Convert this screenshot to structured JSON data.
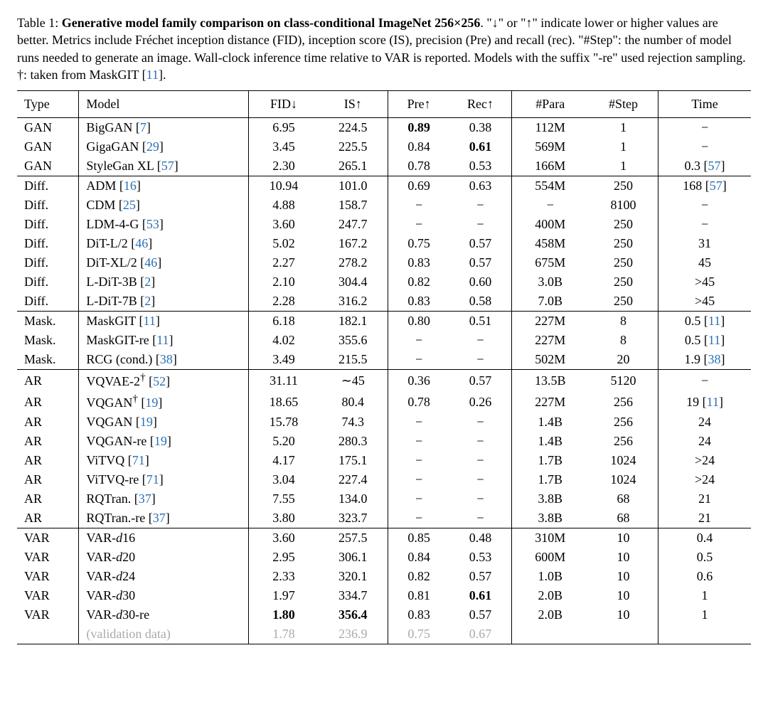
{
  "caption": {
    "label": "Table 1: ",
    "title": "Generative model family comparison on class-conditional ImageNet 256×256",
    "rest_before_cite": ". \"↓\" or \"↑\" indicate lower or higher values are better. Metrics include Fréchet inception distance (FID), inception score (IS), precision (Pre) and recall (rec). \"#Step\": the number of model runs needed to generate an image. Wall-clock inference time relative to VAR is reported. Models with the suffix \"-re\" used rejection sampling. †: taken from MaskGIT [",
    "cite": "11",
    "rest_after_cite": "]."
  },
  "headers": {
    "type": "Type",
    "model": "Model",
    "fid": "FID↓",
    "is": "IS↑",
    "pre": "Pre↑",
    "rec": "Rec↑",
    "para": "#Para",
    "step": "#Step",
    "time": "Time"
  },
  "groups": [
    {
      "rows": [
        {
          "type": "GAN",
          "model": {
            "pre": "BigGAN [",
            "cite": "7",
            "post": "]"
          },
          "fid": "6.95",
          "is": "224.5",
          "pre": {
            "v": "0.89",
            "bold": true
          },
          "rec": "0.38",
          "para": "112M",
          "step": "1",
          "time": {
            "v": "−"
          }
        },
        {
          "type": "GAN",
          "model": {
            "pre": "GigaGAN [",
            "cite": "29",
            "post": "]"
          },
          "fid": "3.45",
          "is": "225.5",
          "pre": "0.84",
          "rec": {
            "v": "0.61",
            "bold": true
          },
          "para": "569M",
          "step": "1",
          "time": {
            "v": "−"
          }
        },
        {
          "type": "GAN",
          "model": {
            "pre": "StyleGan XL [",
            "cite": "57",
            "post": "]"
          },
          "fid": "2.30",
          "is": "265.1",
          "pre": "0.78",
          "rec": "0.53",
          "para": "166M",
          "step": "1",
          "time": {
            "v": "0.3 [",
            "cite": "57",
            "post": "]"
          }
        }
      ]
    },
    {
      "rows": [
        {
          "type": "Diff.",
          "model": {
            "pre": "ADM [",
            "cite": "16",
            "post": "]"
          },
          "fid": "10.94",
          "is": "101.0",
          "pre": "0.69",
          "rec": "0.63",
          "para": "554M",
          "step": "250",
          "time": {
            "v": "168 [",
            "cite": "57",
            "post": "]"
          }
        },
        {
          "type": "Diff.",
          "model": {
            "pre": "CDM [",
            "cite": "25",
            "post": "]"
          },
          "fid": "4.88",
          "is": "158.7",
          "pre": "−",
          "rec": "−",
          "para": "−",
          "step": "8100",
          "time": {
            "v": "−"
          }
        },
        {
          "type": "Diff.",
          "model": {
            "pre": "LDM-4-G [",
            "cite": "53",
            "post": "]"
          },
          "fid": "3.60",
          "is": "247.7",
          "pre": "−",
          "rec": "−",
          "para": "400M",
          "step": "250",
          "time": {
            "v": "−"
          }
        },
        {
          "type": "Diff.",
          "model": {
            "pre": "DiT-L/2 [",
            "cite": "46",
            "post": "]"
          },
          "fid": "5.02",
          "is": "167.2",
          "pre": "0.75",
          "rec": "0.57",
          "para": "458M",
          "step": "250",
          "time": {
            "v": "31"
          }
        },
        {
          "type": "Diff.",
          "model": {
            "pre": "DiT-XL/2 [",
            "cite": "46",
            "post": "]"
          },
          "fid": "2.27",
          "is": "278.2",
          "pre": "0.83",
          "rec": "0.57",
          "para": "675M",
          "step": "250",
          "time": {
            "v": "45"
          }
        },
        {
          "type": "Diff.",
          "model": {
            "pre": "L-DiT-3B [",
            "cite": "2",
            "post": "]"
          },
          "fid": "2.10",
          "is": "304.4",
          "pre": "0.82",
          "rec": "0.60",
          "para": "3.0B",
          "step": "250",
          "time": {
            "v": ">45"
          }
        },
        {
          "type": "Diff.",
          "model": {
            "pre": "L-DiT-7B [",
            "cite": "2",
            "post": "]"
          },
          "fid": "2.28",
          "is": "316.2",
          "pre": "0.83",
          "rec": "0.58",
          "para": "7.0B",
          "step": "250",
          "time": {
            "v": ">45"
          }
        }
      ]
    },
    {
      "rows": [
        {
          "type": "Mask.",
          "model": {
            "pre": "MaskGIT [",
            "cite": "11",
            "post": "]"
          },
          "fid": "6.18",
          "is": "182.1",
          "pre": "0.80",
          "rec": "0.51",
          "para": "227M",
          "step": "8",
          "time": {
            "v": "0.5 [",
            "cite": "11",
            "post": "]"
          }
        },
        {
          "type": "Mask.",
          "model": {
            "pre": "MaskGIT-re [",
            "cite": "11",
            "post": "]"
          },
          "fid": "4.02",
          "is": "355.6",
          "pre": "−",
          "rec": "−",
          "para": "227M",
          "step": "8",
          "time": {
            "v": "0.5 [",
            "cite": "11",
            "post": "]"
          }
        },
        {
          "type": "Mask.",
          "model": {
            "pre": "RCG (cond.) [",
            "cite": "38",
            "post": "]"
          },
          "fid": "3.49",
          "is": "215.5",
          "pre": "−",
          "rec": "−",
          "para": "502M",
          "step": "20",
          "time": {
            "v": "1.9 [",
            "cite": "38",
            "post": "]"
          }
        }
      ]
    },
    {
      "rows": [
        {
          "type": "AR",
          "model": {
            "pre": "VQVAE-2",
            "dag": true,
            "post2": " [",
            "cite": "52",
            "post": "]"
          },
          "fid": "31.11",
          "is": "∼45",
          "pre": "0.36",
          "rec": "0.57",
          "para": "13.5B",
          "step": "5120",
          "time": {
            "v": "−"
          }
        },
        {
          "type": "AR",
          "model": {
            "pre": "VQGAN",
            "dag": true,
            "post2": " [",
            "cite": "19",
            "post": "]"
          },
          "fid": "18.65",
          "is": "80.4",
          "pre": "0.78",
          "rec": "0.26",
          "para": "227M",
          "step": "256",
          "time": {
            "v": "19 [",
            "cite": "11",
            "post": "]"
          }
        },
        {
          "type": "AR",
          "model": {
            "pre": "VQGAN [",
            "cite": "19",
            "post": "]"
          },
          "fid": "15.78",
          "is": "74.3",
          "pre": "−",
          "rec": "−",
          "para": "1.4B",
          "step": "256",
          "time": {
            "v": "24"
          }
        },
        {
          "type": "AR",
          "model": {
            "pre": "VQGAN-re [",
            "cite": "19",
            "post": "]"
          },
          "fid": "5.20",
          "is": "280.3",
          "pre": "−",
          "rec": "−",
          "para": "1.4B",
          "step": "256",
          "time": {
            "v": "24"
          }
        },
        {
          "type": "AR",
          "model": {
            "pre": "ViTVQ [",
            "cite": "71",
            "post": "]"
          },
          "fid": "4.17",
          "is": "175.1",
          "pre": "−",
          "rec": "−",
          "para": "1.7B",
          "step": "1024",
          "time": {
            "v": ">24"
          }
        },
        {
          "type": "AR",
          "model": {
            "pre": "ViTVQ-re [",
            "cite": "71",
            "post": "]"
          },
          "fid": "3.04",
          "is": "227.4",
          "pre": "−",
          "rec": "−",
          "para": "1.7B",
          "step": "1024",
          "time": {
            "v": ">24"
          }
        },
        {
          "type": "AR",
          "model": {
            "pre": "RQTran. [",
            "cite": "37",
            "post": "]"
          },
          "fid": "7.55",
          "is": "134.0",
          "pre": "−",
          "rec": "−",
          "para": "3.8B",
          "step": "68",
          "time": {
            "v": "21"
          }
        },
        {
          "type": "AR",
          "model": {
            "pre": "RQTran.-re [",
            "cite": "37",
            "post": "]"
          },
          "fid": "3.80",
          "is": "323.7",
          "pre": "−",
          "rec": "−",
          "para": "3.8B",
          "step": "68",
          "time": {
            "v": "21"
          }
        }
      ]
    },
    {
      "rows": [
        {
          "type": "VAR",
          "model": {
            "pre": "VAR-",
            "ital": "d",
            "post": "16"
          },
          "fid": "3.60",
          "is": "257.5",
          "pre": "0.85",
          "rec": "0.48",
          "para": "310M",
          "step": "10",
          "time": {
            "v": "0.4"
          }
        },
        {
          "type": "VAR",
          "model": {
            "pre": "VAR-",
            "ital": "d",
            "post": "20"
          },
          "fid": "2.95",
          "is": "306.1",
          "pre": "0.84",
          "rec": "0.53",
          "para": "600M",
          "step": "10",
          "time": {
            "v": "0.5"
          }
        },
        {
          "type": "VAR",
          "model": {
            "pre": "VAR-",
            "ital": "d",
            "post": "24"
          },
          "fid": "2.33",
          "is": "320.1",
          "pre": "0.82",
          "rec": "0.57",
          "para": "1.0B",
          "step": "10",
          "time": {
            "v": "0.6"
          }
        },
        {
          "type": "VAR",
          "model": {
            "pre": "VAR-",
            "ital": "d",
            "post": "30"
          },
          "fid": "1.97",
          "is": "334.7",
          "pre": "0.81",
          "rec": {
            "v": "0.61",
            "bold": true
          },
          "para": "2.0B",
          "step": "10",
          "time": {
            "v": "1"
          }
        },
        {
          "type": "VAR",
          "model": {
            "pre": "VAR-",
            "ital": "d",
            "post": "30-re"
          },
          "fid": {
            "v": "1.80",
            "bold": true
          },
          "is": {
            "v": "356.4",
            "bold": true
          },
          "pre": "0.83",
          "rec": "0.57",
          "para": "2.0B",
          "step": "10",
          "time": {
            "v": "1"
          }
        },
        {
          "gray": true,
          "type": "",
          "model": {
            "pre": "(validation data)"
          },
          "fid": "1.78",
          "is": "236.9",
          "pre": "0.75",
          "rec": "0.67",
          "para": "",
          "step": "",
          "time": {
            "v": ""
          }
        }
      ]
    }
  ]
}
